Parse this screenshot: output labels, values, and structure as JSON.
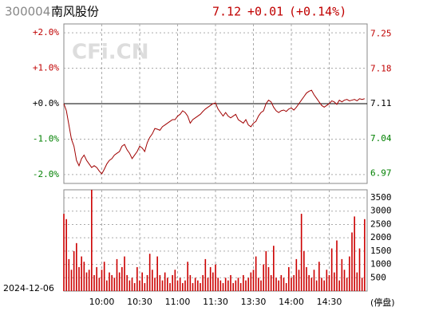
{
  "chart_data": [
    {
      "type": "line",
      "code": "300004",
      "name": "南风股份",
      "price": "7.12",
      "change": "+0.01",
      "change_pct": "(+0.14%)",
      "watermark": "CFi.CN",
      "color": "#a00000",
      "xlim": [
        0,
        120
      ],
      "ylim": [
        -2.25,
        2.25
      ],
      "yticks": [
        {
          "value": 2,
          "label": "+2.0%"
        },
        {
          "value": 1,
          "label": "+1.0%"
        },
        {
          "value": 0,
          "label": "+0.0%"
        },
        {
          "value": -1,
          "label": "-1.0%"
        },
        {
          "value": -2,
          "label": "-2.0%"
        }
      ],
      "y2lim": [
        6.95,
        7.27
      ],
      "y2ticks": [
        7.25,
        7.18,
        7.11,
        7.04,
        6.97
      ],
      "xticks": [
        15,
        30,
        45,
        60,
        75,
        90,
        105
      ],
      "grid": true,
      "values": [
        0.0,
        -0.2,
        -0.6,
        -1.0,
        -1.2,
        -1.6,
        -1.75,
        -1.55,
        -1.45,
        -1.6,
        -1.7,
        -1.8,
        -1.75,
        -1.8,
        -1.9,
        -1.98,
        -1.85,
        -1.7,
        -1.6,
        -1.55,
        -1.45,
        -1.4,
        -1.35,
        -1.2,
        -1.15,
        -1.3,
        -1.4,
        -1.55,
        -1.45,
        -1.35,
        -1.2,
        -1.25,
        -1.35,
        -1.1,
        -0.95,
        -0.85,
        -0.7,
        -0.72,
        -0.75,
        -0.65,
        -0.6,
        -0.55,
        -0.5,
        -0.45,
        -0.45,
        -0.35,
        -0.3,
        -0.2,
        -0.25,
        -0.35,
        -0.55,
        -0.45,
        -0.4,
        -0.35,
        -0.3,
        -0.22,
        -0.15,
        -0.1,
        -0.05,
        0.0,
        0.02,
        -0.15,
        -0.25,
        -0.35,
        -0.25,
        -0.35,
        -0.4,
        -0.35,
        -0.3,
        -0.45,
        -0.5,
        -0.55,
        -0.45,
        -0.6,
        -0.65,
        -0.55,
        -0.5,
        -0.35,
        -0.25,
        -0.2,
        0.0,
        0.1,
        0.05,
        -0.1,
        -0.2,
        -0.25,
        -0.2,
        -0.18,
        -0.22,
        -0.15,
        -0.12,
        -0.18,
        -0.1,
        0.0,
        0.1,
        0.2,
        0.3,
        0.35,
        0.38,
        0.25,
        0.15,
        0.05,
        -0.05,
        -0.1,
        -0.05,
        0.0,
        0.08,
        0.05,
        -0.02,
        0.1,
        0.05,
        0.1,
        0.12,
        0.08,
        0.1,
        0.12,
        0.08,
        0.14,
        0.12,
        0.14
      ]
    },
    {
      "type": "bar",
      "date": "2024-12-06",
      "annotation": "(停盘)",
      "color": "#cc0000",
      "xlim": [
        0,
        120
      ],
      "ylim": [
        0,
        3800
      ],
      "yticks": [
        500,
        1000,
        1500,
        2000,
        2500,
        3000,
        3500
      ],
      "xticks": [
        {
          "value": 15,
          "label": "10:00"
        },
        {
          "value": 30,
          "label": "10:30"
        },
        {
          "value": 45,
          "label": "11:00"
        },
        {
          "value": 60,
          "label": "11:30"
        },
        {
          "value": 75,
          "label": "13:30"
        },
        {
          "value": 90,
          "label": "14:00"
        },
        {
          "value": 105,
          "label": "14:30"
        }
      ],
      "grid": true,
      "values": [
        2900,
        2700,
        1200,
        800,
        1500,
        1800,
        900,
        1300,
        1100,
        700,
        800,
        3800,
        600,
        900,
        500,
        800,
        1100,
        400,
        700,
        600,
        500,
        1200,
        700,
        900,
        1300,
        600,
        400,
        500,
        300,
        900,
        400,
        700,
        300,
        600,
        1400,
        800,
        500,
        1300,
        600,
        400,
        700,
        500,
        300,
        600,
        800,
        400,
        500,
        300,
        400,
        1100,
        600,
        300,
        500,
        400,
        300,
        600,
        1200,
        500,
        900,
        700,
        1000,
        500,
        400,
        300,
        500,
        400,
        600,
        300,
        400,
        500,
        300,
        600,
        400,
        500,
        700,
        800,
        1300,
        500,
        400,
        1000,
        1500,
        900,
        600,
        1700,
        500,
        400,
        600,
        500,
        300,
        900,
        500,
        600,
        1200,
        800,
        2900,
        1500,
        900,
        600,
        500,
        800,
        400,
        1100,
        500,
        400,
        800,
        600,
        1600,
        700,
        1900,
        400,
        1200,
        800,
        500,
        1300,
        2200,
        2800,
        700,
        1600,
        500,
        2700
      ]
    }
  ]
}
